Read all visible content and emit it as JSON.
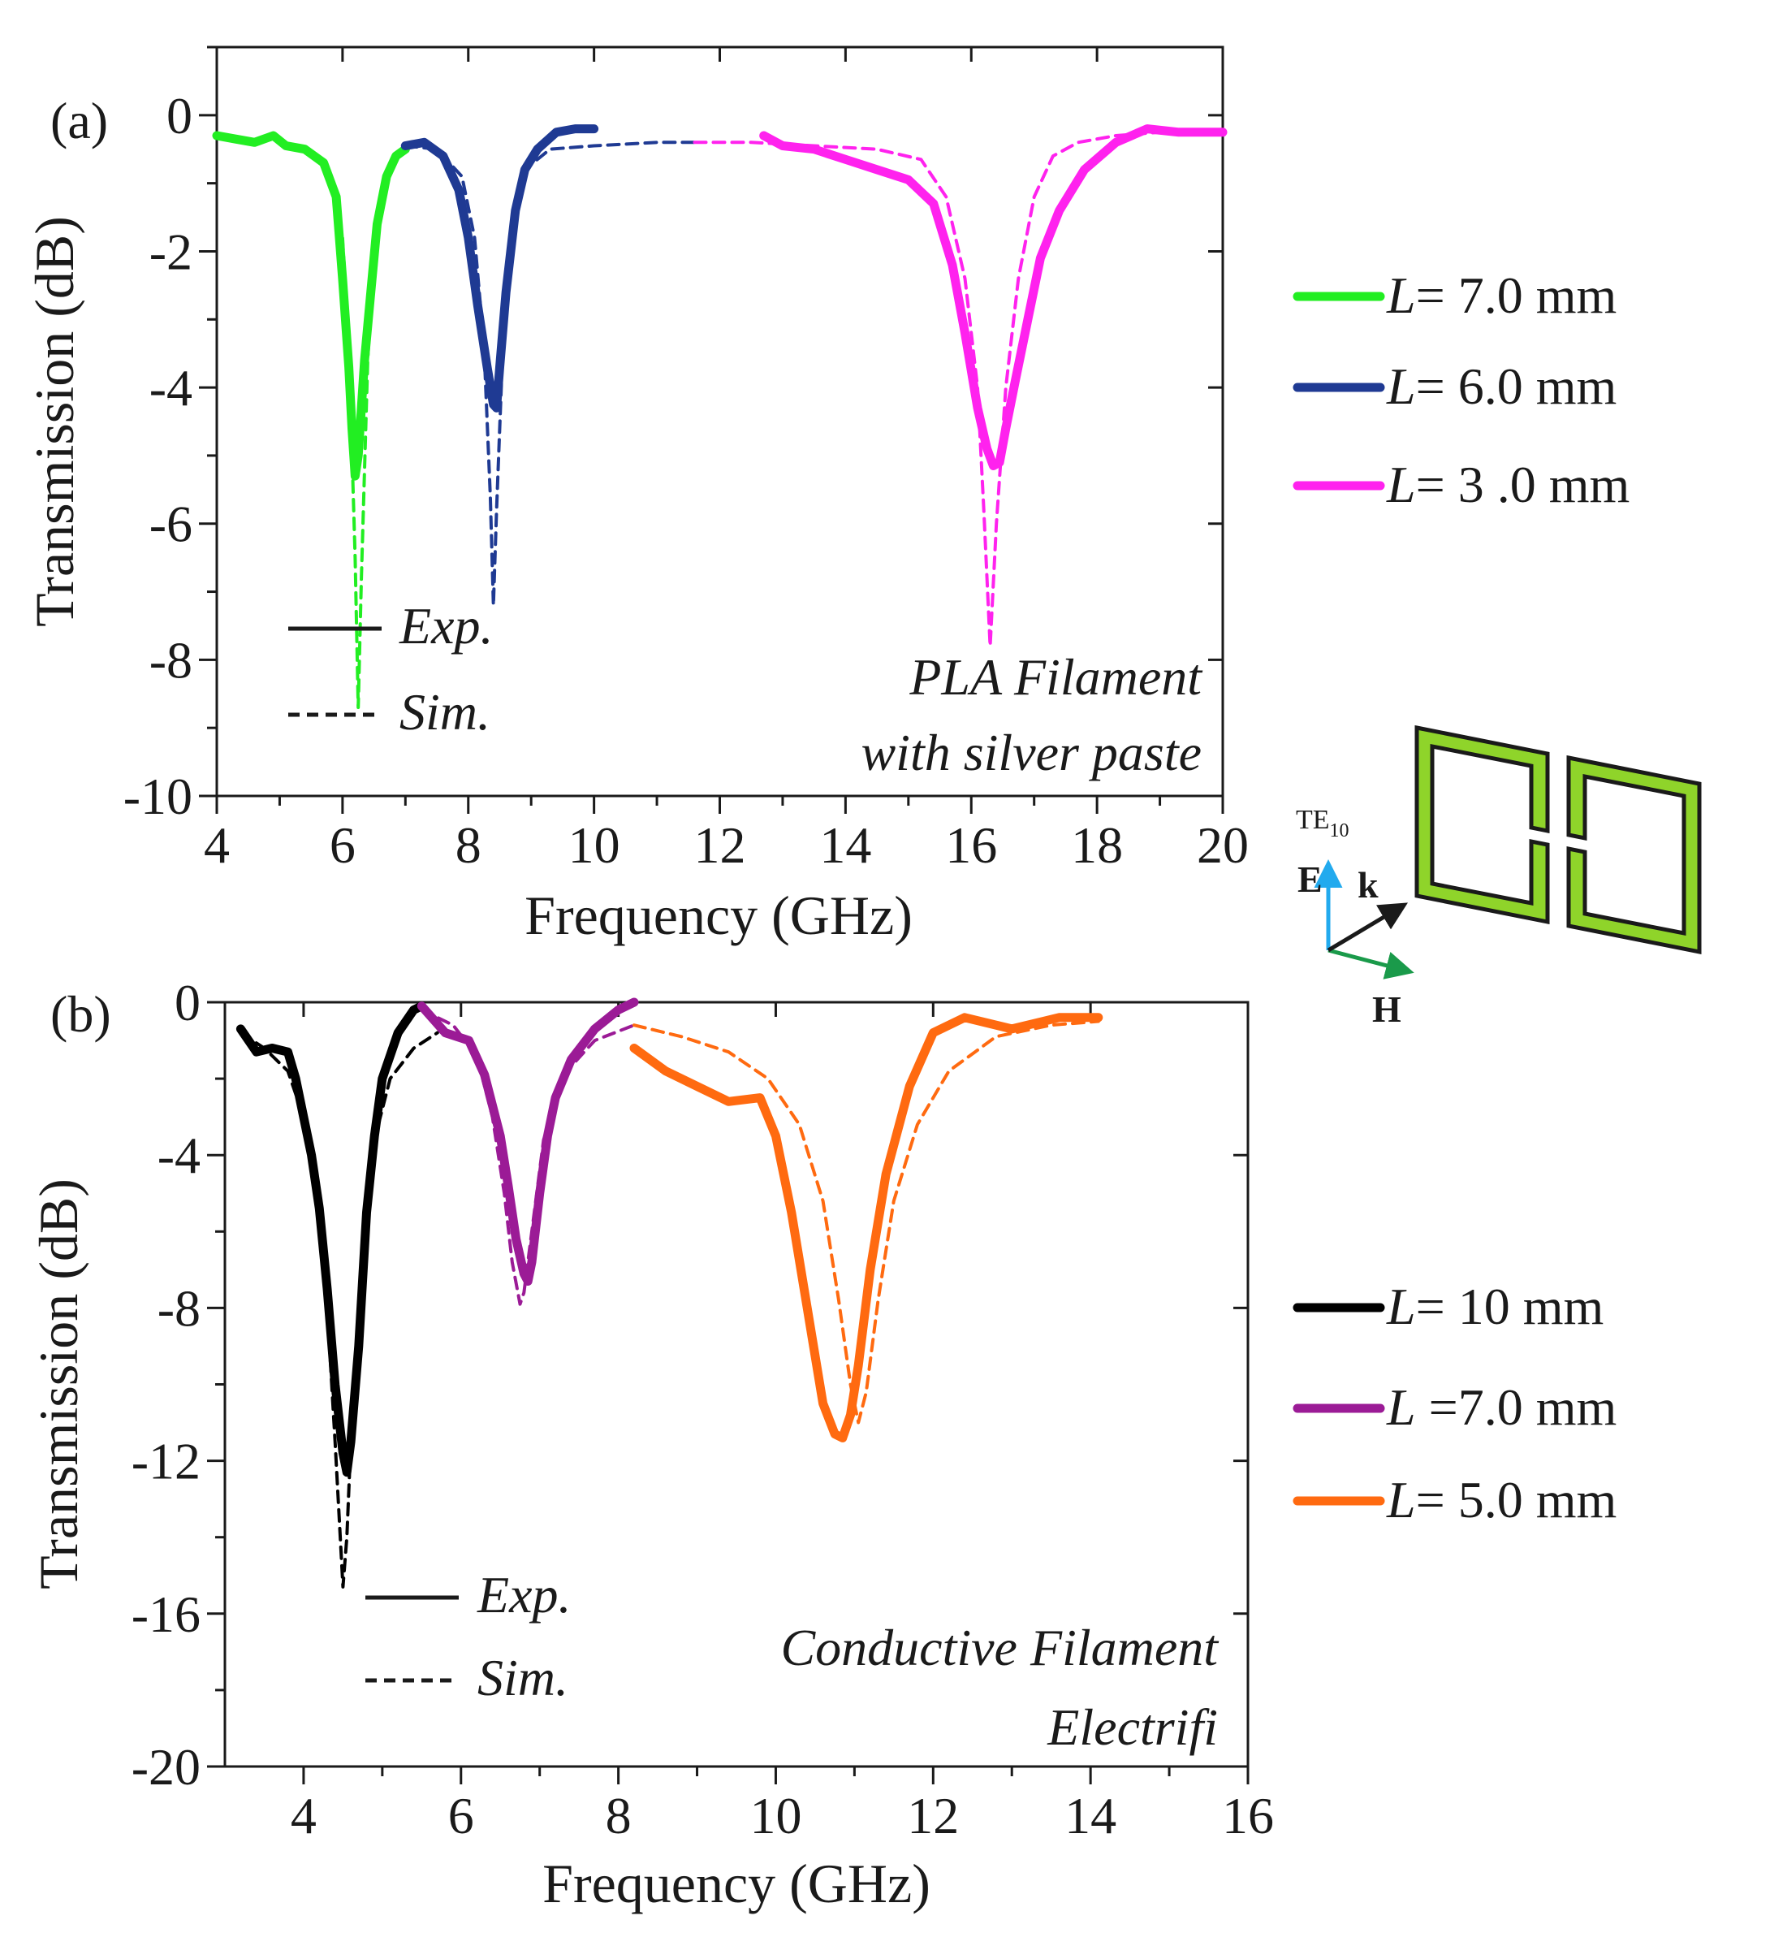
{
  "chart_data": [
    {
      "type": "line",
      "panel_label": "(a)",
      "xlabel": "Frequency (GHz)",
      "ylabel": "Transmission (dB)",
      "xlim": [
        4,
        20
      ],
      "ylim": [
        -10,
        1
      ],
      "xticks": [
        4,
        6,
        8,
        10,
        12,
        14,
        16,
        18,
        20
      ],
      "xtick_labels": [
        "4",
        "6",
        "8",
        "10",
        "12",
        "14",
        "16",
        "18",
        "20"
      ],
      "yticks": [
        0,
        -2,
        -4,
        -6,
        -8,
        -10
      ],
      "ytick_labels": [
        "0",
        "-2",
        "-4",
        "-6",
        "-8",
        "-10"
      ],
      "annotation": [
        "PLA Filament",
        "with silver paste"
      ],
      "style_legend": [
        {
          "label": "Exp.",
          "dash": "solid"
        },
        {
          "label": "Sim.",
          "dash": "dashed"
        }
      ],
      "legend": [
        {
          "prefix": "L",
          "text": "= 7.0 mm",
          "color": "#22ee22"
        },
        {
          "prefix": "L",
          "text": "= 6.0 mm",
          "color": "#1f3a93"
        },
        {
          "prefix": "L",
          "text": "= 3 .0 mm",
          "color": "#ff22ee"
        }
      ],
      "series": [
        {
          "kind": "exp",
          "legend_index": 0,
          "color": "#22ee22",
          "x": [
            4.0,
            4.3,
            4.6,
            4.9,
            5.1,
            5.4,
            5.7,
            5.9,
            6.0,
            6.1,
            6.15,
            6.2,
            6.25,
            6.3,
            6.35,
            6.45,
            6.55,
            6.7,
            6.85,
            7.0
          ],
          "y": [
            -0.3,
            -0.35,
            -0.4,
            -0.3,
            -0.45,
            -0.5,
            -0.7,
            -1.2,
            -2.4,
            -3.7,
            -4.6,
            -5.3,
            -5.0,
            -4.3,
            -3.6,
            -2.6,
            -1.6,
            -0.9,
            -0.6,
            -0.5
          ]
        },
        {
          "kind": "exp",
          "legend_index": 1,
          "color": "#1f3a93",
          "x": [
            7.0,
            7.3,
            7.6,
            7.85,
            8.0,
            8.15,
            8.3,
            8.4,
            8.45,
            8.5,
            8.6,
            8.75,
            8.9,
            9.1,
            9.4,
            9.7,
            10.0
          ],
          "y": [
            -0.45,
            -0.4,
            -0.6,
            -1.1,
            -1.8,
            -2.8,
            -3.7,
            -4.25,
            -4.3,
            -3.7,
            -2.6,
            -1.4,
            -0.8,
            -0.5,
            -0.25,
            -0.2,
            -0.2
          ]
        },
        {
          "kind": "exp",
          "legend_index": 2,
          "color": "#ff22ee",
          "x": [
            12.7,
            13.0,
            13.5,
            14.0,
            14.5,
            15.0,
            15.4,
            15.7,
            15.9,
            16.1,
            16.25,
            16.35,
            16.45,
            16.55,
            16.7,
            16.9,
            17.1,
            17.4,
            17.8,
            18.3,
            18.8,
            19.3,
            20.0
          ],
          "y": [
            -0.3,
            -0.45,
            -0.5,
            -0.65,
            -0.8,
            -0.95,
            -1.3,
            -2.2,
            -3.2,
            -4.3,
            -4.9,
            -5.15,
            -5.1,
            -4.6,
            -3.9,
            -3.0,
            -2.1,
            -1.4,
            -0.8,
            -0.4,
            -0.2,
            -0.25,
            -0.25
          ]
        },
        {
          "kind": "sim",
          "legend_index": 0,
          "color": "#22ee22",
          "x": [
            5.5,
            5.8,
            6.0,
            6.1,
            6.2,
            6.25,
            6.3,
            6.4,
            6.5,
            6.7,
            6.9,
            7.0
          ],
          "y": [
            -0.55,
            -0.9,
            -1.8,
            -3.4,
            -6.5,
            -8.7,
            -6.8,
            -3.6,
            -2.0,
            -0.9,
            -0.6,
            -0.55
          ]
        },
        {
          "kind": "sim",
          "legend_index": 1,
          "color": "#1f3a93",
          "x": [
            7.0,
            7.5,
            7.9,
            8.1,
            8.25,
            8.35,
            8.4,
            8.45,
            8.55,
            8.7,
            8.9,
            9.3,
            10.0,
            11.0,
            11.6
          ],
          "y": [
            -0.45,
            -0.5,
            -0.9,
            -1.8,
            -3.4,
            -5.6,
            -7.2,
            -5.8,
            -3.4,
            -1.6,
            -0.8,
            -0.5,
            -0.45,
            -0.4,
            -0.4
          ]
        },
        {
          "kind": "sim",
          "legend_index": 2,
          "color": "#ff22ee",
          "x": [
            11.6,
            12.5,
            13.5,
            14.5,
            15.2,
            15.6,
            15.9,
            16.1,
            16.2,
            16.3,
            16.4,
            16.55,
            16.75,
            17.0,
            17.3,
            17.7,
            18.3,
            19.0,
            20.0
          ],
          "y": [
            -0.4,
            -0.4,
            -0.45,
            -0.5,
            -0.65,
            -1.2,
            -2.4,
            -4.0,
            -5.8,
            -7.8,
            -6.0,
            -4.0,
            -2.4,
            -1.2,
            -0.6,
            -0.4,
            -0.3,
            -0.25,
            -0.25
          ]
        }
      ]
    },
    {
      "type": "line",
      "panel_label": "(b)",
      "xlabel": "Frequency (GHz)",
      "ylabel": "Transmission (dB)",
      "xlim": [
        3,
        16
      ],
      "ylim": [
        -20,
        0
      ],
      "xticks": [
        4,
        6,
        8,
        10,
        12,
        14,
        16
      ],
      "xtick_labels": [
        "4",
        "6",
        "8",
        "10",
        "12",
        "14",
        "16"
      ],
      "yticks": [
        0,
        -4,
        -8,
        -12,
        -16,
        -20
      ],
      "ytick_labels": [
        "0",
        "-4",
        "-8",
        "-12",
        "-16",
        "-20"
      ],
      "annotation": [
        "Conductive Filament",
        "Electrifi"
      ],
      "style_legend": [
        {
          "label": "Exp.",
          "dash": "solid"
        },
        {
          "label": "Sim.",
          "dash": "dashed"
        }
      ],
      "legend": [
        {
          "prefix": "L",
          "text": "= 10 mm",
          "color": "#000000"
        },
        {
          "prefix": "L",
          "text": " =7.0 mm",
          "color": "#9b1b96"
        },
        {
          "prefix": "L",
          "text": "=  5.0 mm",
          "color": "#ff6a10"
        }
      ],
      "series": [
        {
          "kind": "exp",
          "legend_index": 0,
          "color": "#000000",
          "x": [
            3.2,
            3.4,
            3.6,
            3.8,
            3.9,
            4.0,
            4.1,
            4.2,
            4.3,
            4.4,
            4.5,
            4.55,
            4.6,
            4.7,
            4.8,
            4.9,
            5.0,
            5.2,
            5.4,
            5.5
          ],
          "y": [
            -0.7,
            -1.3,
            -1.2,
            -1.3,
            -2.0,
            -3.0,
            -4.0,
            -5.4,
            -7.5,
            -10.0,
            -11.8,
            -12.3,
            -11.5,
            -9.0,
            -5.5,
            -3.5,
            -2.0,
            -0.8,
            -0.2,
            -0.1
          ]
        },
        {
          "kind": "exp",
          "legend_index": 1,
          "color": "#9b1b96",
          "x": [
            5.5,
            5.8,
            6.1,
            6.3,
            6.5,
            6.6,
            6.7,
            6.8,
            6.85,
            6.9,
            7.0,
            7.1,
            7.2,
            7.4,
            7.7,
            8.0,
            8.2
          ],
          "y": [
            -0.1,
            -0.8,
            -1.0,
            -1.9,
            -3.5,
            -4.8,
            -6.2,
            -7.1,
            -7.3,
            -6.8,
            -5.0,
            -3.5,
            -2.5,
            -1.5,
            -0.7,
            -0.2,
            0.0
          ]
        },
        {
          "kind": "exp",
          "legend_index": 2,
          "color": "#ff6a10",
          "x": [
            8.2,
            8.6,
            9.0,
            9.4,
            9.8,
            10.0,
            10.2,
            10.4,
            10.6,
            10.75,
            10.85,
            10.95,
            11.05,
            11.2,
            11.4,
            11.7,
            12.0,
            12.4,
            13.0,
            13.6,
            14.1
          ],
          "y": [
            -1.2,
            -1.8,
            -2.2,
            -2.6,
            -2.5,
            -3.5,
            -5.5,
            -8.0,
            -10.5,
            -11.3,
            -11.4,
            -10.8,
            -9.5,
            -7.0,
            -4.5,
            -2.2,
            -0.8,
            -0.4,
            -0.7,
            -0.4,
            -0.4
          ]
        },
        {
          "kind": "sim",
          "legend_index": 0,
          "color": "#000000",
          "x": [
            3.2,
            3.5,
            3.8,
            4.0,
            4.2,
            4.3,
            4.4,
            4.5,
            4.55,
            4.6,
            4.7,
            4.8,
            4.9,
            5.1,
            5.4,
            5.7
          ],
          "y": [
            -0.8,
            -1.2,
            -1.8,
            -3.0,
            -5.5,
            -8.0,
            -11.5,
            -15.3,
            -14.0,
            -11.5,
            -8.0,
            -5.5,
            -3.6,
            -2.0,
            -1.2,
            -0.8
          ]
        },
        {
          "kind": "sim",
          "legend_index": 1,
          "color": "#9b1b96",
          "x": [
            5.5,
            5.9,
            6.2,
            6.4,
            6.55,
            6.65,
            6.75,
            6.8,
            6.9,
            7.05,
            7.3,
            7.7,
            8.2
          ],
          "y": [
            -0.2,
            -0.6,
            -1.4,
            -3.0,
            -5.0,
            -6.8,
            -7.9,
            -7.6,
            -6.0,
            -3.6,
            -1.9,
            -1.0,
            -0.6
          ]
        },
        {
          "kind": "sim",
          "legend_index": 2,
          "color": "#ff6a10",
          "x": [
            8.2,
            8.8,
            9.4,
            9.9,
            10.3,
            10.6,
            10.8,
            10.95,
            11.05,
            11.15,
            11.3,
            11.5,
            11.8,
            12.2,
            12.8,
            13.5,
            14.1
          ],
          "y": [
            -0.6,
            -0.9,
            -1.3,
            -2.0,
            -3.2,
            -5.2,
            -7.8,
            -10.0,
            -11.0,
            -10.2,
            -7.8,
            -5.2,
            -3.2,
            -1.8,
            -0.9,
            -0.6,
            -0.5
          ]
        }
      ]
    }
  ],
  "inset": {
    "mode_label": "TE",
    "mode_subscript": "10",
    "e_label": "E",
    "k_label": "k",
    "h_label": "H",
    "resonator_fill": "#8fd42a",
    "e_color": "#22aaee",
    "h_color": "#1a9a4a",
    "k_color": "#1a1a1a"
  }
}
